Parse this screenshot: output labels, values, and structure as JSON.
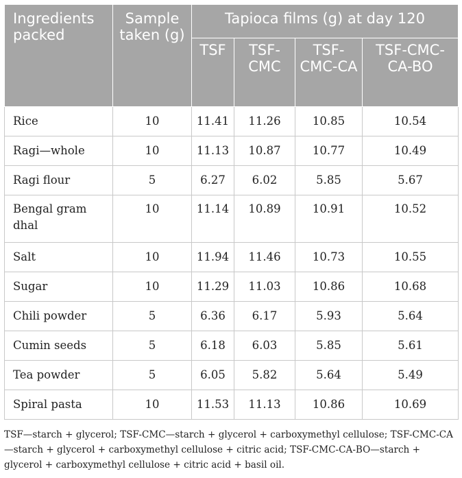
{
  "table": {
    "headers": {
      "ingredients": "Ingredients packed",
      "sample": "Sample taken (g)",
      "group": "Tapioca films (g) at day 120",
      "tsf": "TSF",
      "tsf_cmc": "TSF-CMC",
      "tsf_cmc_ca": "TSF-CMC-CA",
      "tsf_cmc_ca_bo": "TSF-CMC-CA-BO"
    },
    "rows": [
      {
        "ingredient": "Rice",
        "sample": "10",
        "tsf": "11.41",
        "tsf_cmc": "11.26",
        "tsf_cmc_ca": "10.85",
        "tsf_cmc_ca_bo": "10.54"
      },
      {
        "ingredient": "Ragi—whole",
        "sample": "10",
        "tsf": "11.13",
        "tsf_cmc": "10.87",
        "tsf_cmc_ca": "10.77",
        "tsf_cmc_ca_bo": "10.49"
      },
      {
        "ingredient": "Ragi flour",
        "sample": "5",
        "tsf": "6.27",
        "tsf_cmc": "6.02",
        "tsf_cmc_ca": "5.85",
        "tsf_cmc_ca_bo": "5.67"
      },
      {
        "ingredient": "Bengal gram dhal",
        "sample": "10",
        "tsf": "11.14",
        "tsf_cmc": "10.89",
        "tsf_cmc_ca": "10.91",
        "tsf_cmc_ca_bo": "10.52"
      },
      {
        "ingredient": "Salt",
        "sample": "10",
        "tsf": "11.94",
        "tsf_cmc": "11.46",
        "tsf_cmc_ca": "10.73",
        "tsf_cmc_ca_bo": "10.55"
      },
      {
        "ingredient": "Sugar",
        "sample": "10",
        "tsf": "11.29",
        "tsf_cmc": "11.03",
        "tsf_cmc_ca": "10.86",
        "tsf_cmc_ca_bo": "10.68"
      },
      {
        "ingredient": "Chili powder",
        "sample": "5",
        "tsf": "6.36",
        "tsf_cmc": "6.17",
        "tsf_cmc_ca": "5.93",
        "tsf_cmc_ca_bo": "5.64"
      },
      {
        "ingredient": "Cumin seeds",
        "sample": "5",
        "tsf": "6.18",
        "tsf_cmc": "6.03",
        "tsf_cmc_ca": "5.85",
        "tsf_cmc_ca_bo": "5.61"
      },
      {
        "ingredient": "Tea powder",
        "sample": "5",
        "tsf": "6.05",
        "tsf_cmc": "5.82",
        "tsf_cmc_ca": "5.64",
        "tsf_cmc_ca_bo": "5.49"
      },
      {
        "ingredient": "Spiral pasta",
        "sample": "10",
        "tsf": "11.53",
        "tsf_cmc": "11.13",
        "tsf_cmc_ca": "10.86",
        "tsf_cmc_ca_bo": "10.69"
      }
    ]
  },
  "footnote": "TSF—starch + glycerol; TSF-CMC—starch + glycerol + carboxymethyl cellulose; TSF-CMC-CA—starch + glycerol + carboxymethyl cellulose + citric acid; TSF-CMC-CA-BO—starch + glycerol + carboxymethyl cellulose + citric acid + basil oil.",
  "colors": {
    "header_bg": "#a6a6a6",
    "header_text": "#ffffff",
    "grid": "#c8c8c8"
  }
}
